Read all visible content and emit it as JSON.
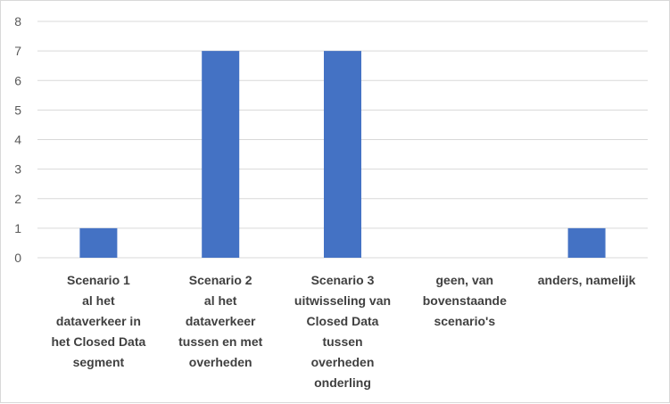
{
  "chart_data": {
    "type": "bar",
    "categories": [
      "Scenario 1 al het dataverkeer in het Closed Data segment",
      "Scenario 2 al het dataverkeer tussen en met overheden",
      "Scenario 3 uitwisseling van Closed Data tussen overheden onderling",
      "geen, van bovenstaande scenario's",
      "anders, namelijk"
    ],
    "category_lines": [
      [
        "Scenario 1",
        "al het",
        "dataverkeer in",
        "het Closed Data",
        "segment"
      ],
      [
        "Scenario 2",
        "al het",
        "dataverkeer",
        "tussen en met",
        "overheden"
      ],
      [
        "Scenario 3",
        "uitwisseling van",
        "Closed Data",
        "tussen",
        "overheden",
        "onderling"
      ],
      [
        "geen, van",
        "bovenstaande",
        "scenario's"
      ],
      [
        "anders, namelijk"
      ]
    ],
    "values": [
      1,
      7,
      7,
      0,
      1
    ],
    "yticks": [
      "0",
      "1",
      "2",
      "3",
      "4",
      "5",
      "6",
      "7",
      "8"
    ],
    "ylim": [
      0,
      8
    ],
    "grid": true,
    "legend": "none",
    "bar_color": "#4472C4",
    "grid_color": "#d9d9d9"
  }
}
